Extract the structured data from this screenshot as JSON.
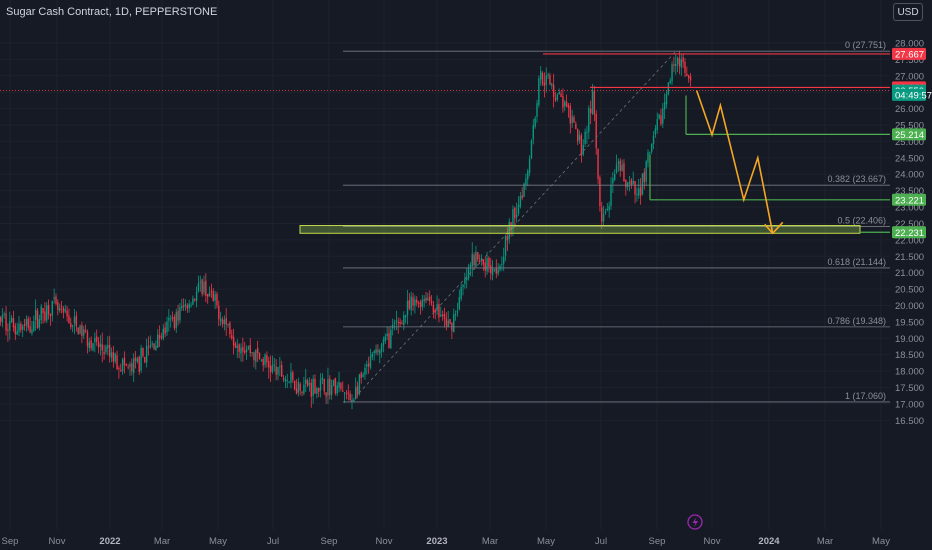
{
  "header": {
    "title": "Sugar Cash Contract, 1D, PEPPERSTONE",
    "currency_button": "USD"
  },
  "y_axis": {
    "ticks": [
      "28.000",
      "27.500",
      "27.000",
      "26.500",
      "26.000",
      "25.500",
      "25.000",
      "24.500",
      "24.000",
      "23.500",
      "23.000",
      "22.500",
      "22.000",
      "21.500",
      "21.000",
      "20.500",
      "20.000",
      "19.500",
      "19.000",
      "18.500",
      "18.000",
      "17.500",
      "17.000",
      "16.500"
    ]
  },
  "x_axis": {
    "ticks": [
      {
        "label": "Sep",
        "bold": false
      },
      {
        "label": "Nov",
        "bold": false
      },
      {
        "label": "2022",
        "bold": true
      },
      {
        "label": "Mar",
        "bold": false
      },
      {
        "label": "May",
        "bold": false
      },
      {
        "label": "Jul",
        "bold": false
      },
      {
        "label": "Sep",
        "bold": false
      },
      {
        "label": "Nov",
        "bold": false
      },
      {
        "label": "2023",
        "bold": true
      },
      {
        "label": "Mar",
        "bold": false
      },
      {
        "label": "May",
        "bold": false
      },
      {
        "label": "Jul",
        "bold": false
      },
      {
        "label": "Sep",
        "bold": false
      },
      {
        "label": "Nov",
        "bold": false
      },
      {
        "label": "2024",
        "bold": true
      },
      {
        "label": "Mar",
        "bold": false
      },
      {
        "label": "May",
        "bold": false
      }
    ]
  },
  "price_badges": [
    {
      "label": "27.667",
      "color": "#f23645",
      "value": 27.667
    },
    {
      "label": "26.646",
      "color": "#f23645",
      "value": 26.646
    },
    {
      "label": "26.550",
      "color": "#089981",
      "value": 26.55
    },
    {
      "label": "04:49:57",
      "color": "#089981",
      "value": 26.42
    },
    {
      "label": "25.214",
      "color": "#4caf50",
      "value": 25.214
    },
    {
      "label": "23.221",
      "color": "#4caf50",
      "value": 23.221
    },
    {
      "label": "22.231",
      "color": "#4caf50",
      "value": 22.231
    }
  ],
  "fib_levels": [
    {
      "label": "0 (27.751)",
      "value": 27.751
    },
    {
      "label": "0.382 (23.667)",
      "value": 23.667
    },
    {
      "label": "0.5 (22.406)",
      "value": 22.406
    },
    {
      "label": "0.618 (21.144)",
      "value": 21.144
    },
    {
      "label": "0.786 (19.348)",
      "value": 19.348
    },
    {
      "label": "1 (17.060)",
      "value": 17.06
    }
  ],
  "colors": {
    "up": "#089981",
    "down": "#f23645",
    "resistance": "#f23645",
    "support": "#4caf50",
    "zone": "#8bc34a",
    "projection": "#f5a623",
    "fib": "#787b86",
    "background": "#161a25"
  },
  "icons": {
    "bottom": "lightning-icon"
  },
  "chart_data": {
    "type": "candlestick",
    "title": "Sugar Cash Contract, 1D, PEPPERSTONE",
    "x_range": [
      "2021-09",
      "2024-05"
    ],
    "ylim": [
      16.3,
      28.3
    ],
    "grid": true,
    "price_path": [
      {
        "date": "2021-08-15",
        "price": 19.8
      },
      {
        "date": "2021-09-20",
        "price": 19.3
      },
      {
        "date": "2021-10-25",
        "price": 20.0
      },
      {
        "date": "2021-12-20",
        "price": 18.7
      },
      {
        "date": "2022-01-25",
        "price": 18.0
      },
      {
        "date": "2022-03-20",
        "price": 19.8
      },
      {
        "date": "2022-04-15",
        "price": 20.6
      },
      {
        "date": "2022-05-20",
        "price": 19.0
      },
      {
        "date": "2022-06-20",
        "price": 18.3
      },
      {
        "date": "2022-07-25",
        "price": 17.6
      },
      {
        "date": "2022-09-10",
        "price": 17.5
      },
      {
        "date": "2022-09-25",
        "price": 17.1
      },
      {
        "date": "2022-10-20",
        "price": 18.4
      },
      {
        "date": "2022-11-30",
        "price": 19.9
      },
      {
        "date": "2022-12-20",
        "price": 20.3
      },
      {
        "date": "2023-01-15",
        "price": 19.3
      },
      {
        "date": "2023-02-10",
        "price": 21.4
      },
      {
        "date": "2023-03-10",
        "price": 21.2
      },
      {
        "date": "2023-04-10",
        "price": 24.0
      },
      {
        "date": "2023-04-25",
        "price": 27.1
      },
      {
        "date": "2023-05-20",
        "price": 26.2
      },
      {
        "date": "2023-06-10",
        "price": 24.8
      },
      {
        "date": "2023-06-22",
        "price": 26.4
      },
      {
        "date": "2023-07-01",
        "price": 22.3
      },
      {
        "date": "2023-07-20",
        "price": 24.2
      },
      {
        "date": "2023-08-10",
        "price": 23.3
      },
      {
        "date": "2023-09-10",
        "price": 26.2
      },
      {
        "date": "2023-09-22",
        "price": 27.7
      },
      {
        "date": "2023-10-10",
        "price": 26.55
      }
    ],
    "annotations": {
      "resistance": [
        27.667,
        26.646
      ],
      "support": [
        25.214,
        23.221,
        22.231
      ],
      "demand_zone": [
        22.231,
        22.406
      ],
      "projection_path": [
        {
          "date": "2023-10-15",
          "price": 26.55
        },
        {
          "date": "2023-11-01",
          "price": 25.2
        },
        {
          "date": "2023-11-10",
          "price": 26.1
        },
        {
          "date": "2023-12-05",
          "price": 23.221
        },
        {
          "date": "2023-12-20",
          "price": 24.5
        },
        {
          "date": "2024-01-05",
          "price": 22.2
        }
      ]
    }
  }
}
